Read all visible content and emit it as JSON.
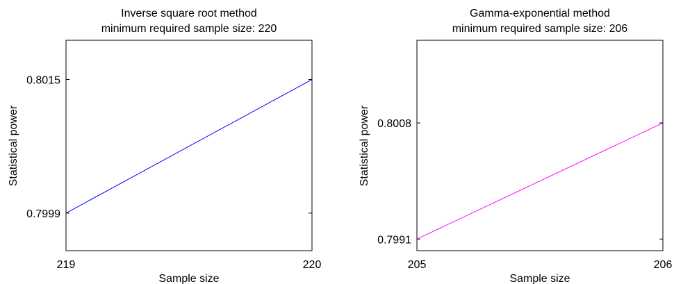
{
  "chart_data": [
    {
      "type": "line",
      "title": [
        "Inverse square root method",
        "minimum required sample size: 220"
      ],
      "xlabel": "Sample size",
      "ylabel": "Statistical power",
      "x_ticks": [
        "219",
        "220"
      ],
      "y_ticks": [
        "0.7999",
        "0.8015"
      ],
      "x_tick_values": [
        219,
        220
      ],
      "y_tick_values": [
        0.7999,
        0.8015
      ],
      "xlim": [
        219,
        220
      ],
      "ylim": [
        0.79945,
        0.80197
      ],
      "grid": false,
      "series": [
        {
          "color": "#0000ff",
          "x": [
            219,
            220
          ],
          "y": [
            0.7999,
            0.8015
          ]
        }
      ]
    },
    {
      "type": "line",
      "title": [
        "Gamma-exponential method",
        "minimum required sample size: 206"
      ],
      "xlabel": "Sample size",
      "ylabel": "Statistical power",
      "x_ticks": [
        "205",
        "206"
      ],
      "y_ticks": [
        "0.7991",
        "0.8008"
      ],
      "x_tick_values": [
        205,
        206
      ],
      "y_tick_values": [
        0.7991,
        0.8008
      ],
      "xlim": [
        205,
        206
      ],
      "ylim": [
        0.79893,
        0.80201
      ],
      "grid": false,
      "series": [
        {
          "color": "#ff00ff",
          "x": [
            205,
            206
          ],
          "y": [
            0.7991,
            0.8008
          ]
        }
      ]
    }
  ]
}
